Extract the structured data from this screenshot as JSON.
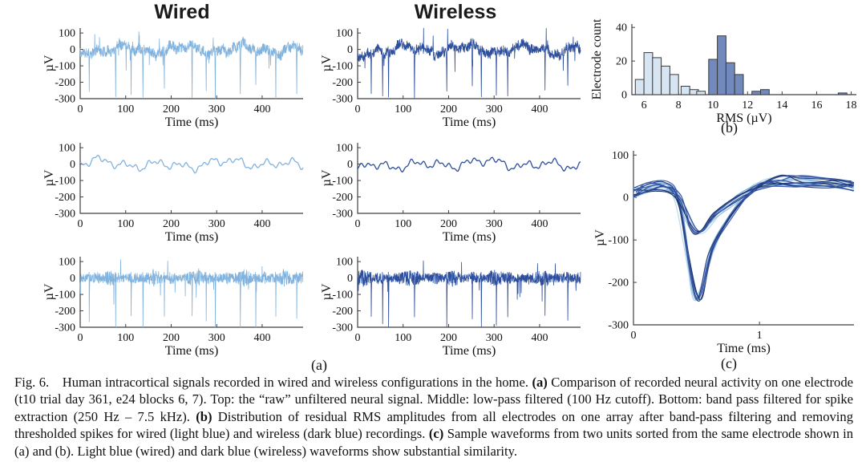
{
  "figure": {
    "column_titles": [
      {
        "label": "Wired"
      },
      {
        "label": "Wireless"
      }
    ],
    "panel_labels": {
      "a": "(a)",
      "b": "(b)",
      "c": "(c)"
    },
    "caption_segments": [
      {
        "text": "Fig. 6. Human intracortical signals recorded in wired and wireless configurations in the home. ",
        "bold": false
      },
      {
        "text": "(a)",
        "bold": true
      },
      {
        "text": " Comparison of recorded neural activity on one electrode (t10 trial day 361, e24 blocks 6, 7). Top: the “raw” unfiltered neural signal. Middle: low-pass filtered (100 Hz cutoff). Bottom: band pass filtered for spike extraction (250 Hz – 7.5 kHz). ",
        "bold": false
      },
      {
        "text": "(b)",
        "bold": true
      },
      {
        "text": " Distribution of residual RMS amplitudes from all electrodes on one array after band-pass filtering and removing thresholded spikes for wired (light blue) and wireless (dark blue) recordings. ",
        "bold": false
      },
      {
        "text": "(c)",
        "bold": true
      },
      {
        "text": " Sample waveforms from two units sorted from the same electrode shown in (a) and (b). Light blue (wired) and dark blue (wireless) waveforms show substantial similarity.",
        "bold": false
      }
    ]
  },
  "colors": {
    "wired_trace": "#82b3de",
    "wireless_trace": "#2d4f9e",
    "hist_wired_fill": "#d7e4f1",
    "hist_wireless_fill": "#7289bd",
    "hist_edge": "#3a3a3a",
    "axis": "#3f3f3f",
    "text": "#111111",
    "waveform_light_shades": [
      "#a8cbe9",
      "#8ab8de",
      "#74a9d8",
      "#bcd7ee",
      "#93bde2"
    ],
    "waveform_dark_shades": [
      "#2d4f9e",
      "#24407f",
      "#3b5bab",
      "#1d3569",
      "#33509f"
    ]
  },
  "chart_data": [
    {
      "panel": "a",
      "type": "line",
      "description": "Six subplots: rows = raw, low-pass (100 Hz cutoff), band-pass (250 Hz - 7.5 kHz); columns = Wired (light blue), Wireless (dark blue)",
      "xlabel": "Time (ms)",
      "ylabel": "µV",
      "xlim": [
        0,
        490
      ],
      "xticks": [
        0,
        100,
        200,
        300,
        400
      ],
      "ylim": [
        -300,
        130
      ],
      "yticks": [
        100,
        0,
        -100,
        -200,
        -300
      ],
      "rows": [
        {
          "name": "raw",
          "description": "raw unfiltered neural signal"
        },
        {
          "name": "low-pass",
          "description": "low-pass filtered (100 Hz cutoff)"
        },
        {
          "name": "band-pass",
          "description": "band pass filtered for spike extraction (250 Hz - 7.5 kHz)"
        }
      ],
      "wired_spike_times_ms": [
        20,
        78,
        112,
        138,
        185,
        246,
        277,
        297,
        352,
        386,
        430,
        476
      ],
      "wireless_spike_times_ms": [
        30,
        55,
        68,
        125,
        196,
        252,
        272,
        305,
        330,
        412,
        462
      ],
      "noise_band_uV": [
        -80,
        90
      ],
      "spike_depth_uV": [
        -210,
        -300
      ],
      "wireless_start_dip_uV": -75
    },
    {
      "panel": "b",
      "type": "bar",
      "xlabel": "RMS (µV)",
      "ylabel": "Electrode count",
      "xlim": [
        5.3,
        18.3
      ],
      "xticks": [
        6,
        8,
        10,
        12,
        14,
        16,
        18
      ],
      "ylim": [
        0,
        42
      ],
      "yticks": [
        0,
        20,
        40
      ],
      "bin_width": 0.5,
      "series": [
        {
          "name": "wired (light blue)",
          "bin_centers": [
            5.75,
            6.25,
            6.75,
            7.25,
            7.75,
            8.4,
            8.9,
            9.3,
            10.1,
            10.6
          ],
          "counts": [
            9,
            25,
            22,
            17,
            12,
            5,
            3,
            2,
            2,
            2
          ]
        },
        {
          "name": "wireless (dark blue)",
          "bin_centers": [
            10.0,
            10.5,
            11.0,
            11.5,
            12.5,
            13.0,
            17.5
          ],
          "counts": [
            21,
            35,
            19,
            12,
            2,
            3,
            1
          ]
        }
      ]
    },
    {
      "panel": "c",
      "type": "line",
      "description": "Overlaid spike waveforms from two sorted units, wired (light blue) and wireless (dark blue)",
      "xlabel": "Time (ms)",
      "ylabel": "µV",
      "xlim": [
        0,
        1.75
      ],
      "xticks": [
        0,
        1
      ],
      "ylim": [
        -300,
        110
      ],
      "yticks": [
        100,
        0,
        -100,
        -200,
        -300
      ],
      "traces_per_unit_per_config": 5,
      "configs": [
        "wired (light blue)",
        "wireless (dark blue)"
      ],
      "units": [
        {
          "name": "unit-1-large",
          "trough_uV": -235,
          "trough_ms": 0.5,
          "keypoints": [
            [
              0,
              15
            ],
            [
              0.12,
              25
            ],
            [
              0.26,
              30
            ],
            [
              0.36,
              -15
            ],
            [
              0.5,
              -235
            ],
            [
              0.62,
              -125
            ],
            [
              0.76,
              -45
            ],
            [
              0.95,
              20
            ],
            [
              1.15,
              48
            ],
            [
              1.35,
              42
            ],
            [
              1.6,
              35
            ],
            [
              1.75,
              30
            ]
          ],
          "jitter": [
            30,
            20,
            14,
            22,
            18,
            18,
            16,
            20,
            24,
            22,
            20,
            20
          ]
        },
        {
          "name": "unit-2-small",
          "trough_uV": -82,
          "trough_ms": 0.5,
          "keypoints": [
            [
              0,
              12
            ],
            [
              0.2,
              22
            ],
            [
              0.35,
              2
            ],
            [
              0.5,
              -82
            ],
            [
              0.66,
              -38
            ],
            [
              0.85,
              5
            ],
            [
              1.05,
              28
            ],
            [
              1.3,
              32
            ],
            [
              1.55,
              28
            ],
            [
              1.75,
              22
            ]
          ],
          "jitter": [
            26,
            16,
            12,
            12,
            12,
            16,
            18,
            18,
            16,
            16
          ]
        }
      ]
    }
  ]
}
